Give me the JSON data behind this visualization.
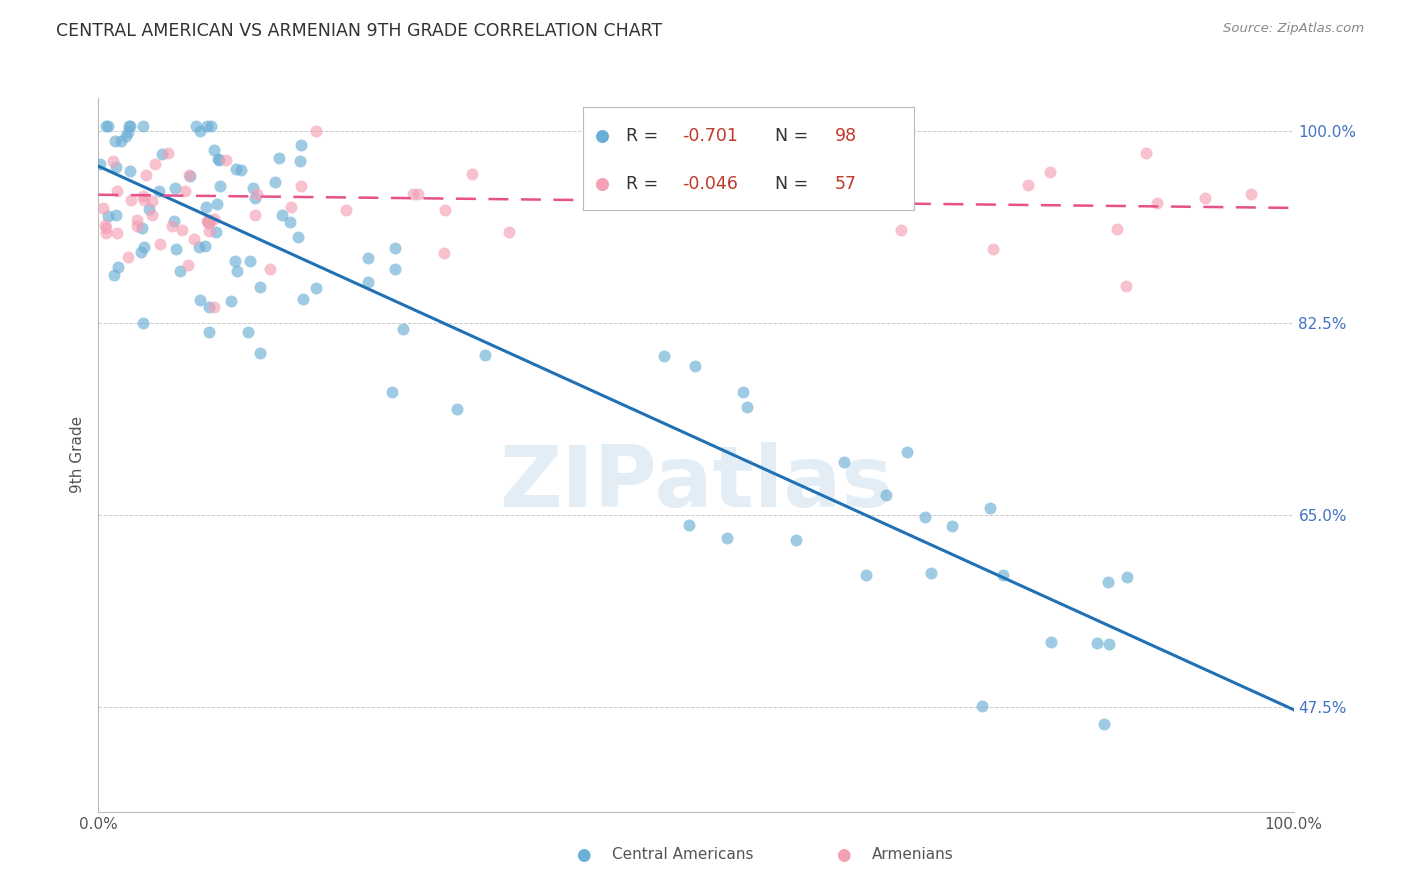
{
  "title": "CENTRAL AMERICAN VS ARMENIAN 9TH GRADE CORRELATION CHART",
  "source": "Source: ZipAtlas.com",
  "ylabel": "9th Grade",
  "legend_blue_r": "-0.701",
  "legend_blue_n": "98",
  "legend_pink_r": "-0.046",
  "legend_pink_n": "57",
  "blue_color": "#6baed6",
  "pink_color": "#f4a0b5",
  "blue_line_color": "#2171b5",
  "pink_line_color": "#e8508a",
  "watermark": "ZIPatlas",
  "blue_line_x0": 0.0,
  "blue_line_y0": 0.968,
  "blue_line_x1": 1.0,
  "blue_line_y1": 0.473,
  "pink_line_x0": 0.0,
  "pink_line_y0": 0.942,
  "pink_line_x1": 1.0,
  "pink_line_y1": 0.93,
  "xlim": [
    0.0,
    1.0
  ],
  "ylim": [
    0.38,
    1.03
  ],
  "ytick_vals": [
    0.475,
    0.65,
    0.825,
    1.0
  ],
  "ytick_labels": [
    "47.5%",
    "65.0%",
    "82.5%",
    "100.0%"
  ],
  "xtick_vals": [
    0.0,
    0.25,
    0.5,
    0.75,
    1.0
  ],
  "xtick_labels": [
    "0.0%",
    "",
    "",
    "",
    "100.0%"
  ]
}
